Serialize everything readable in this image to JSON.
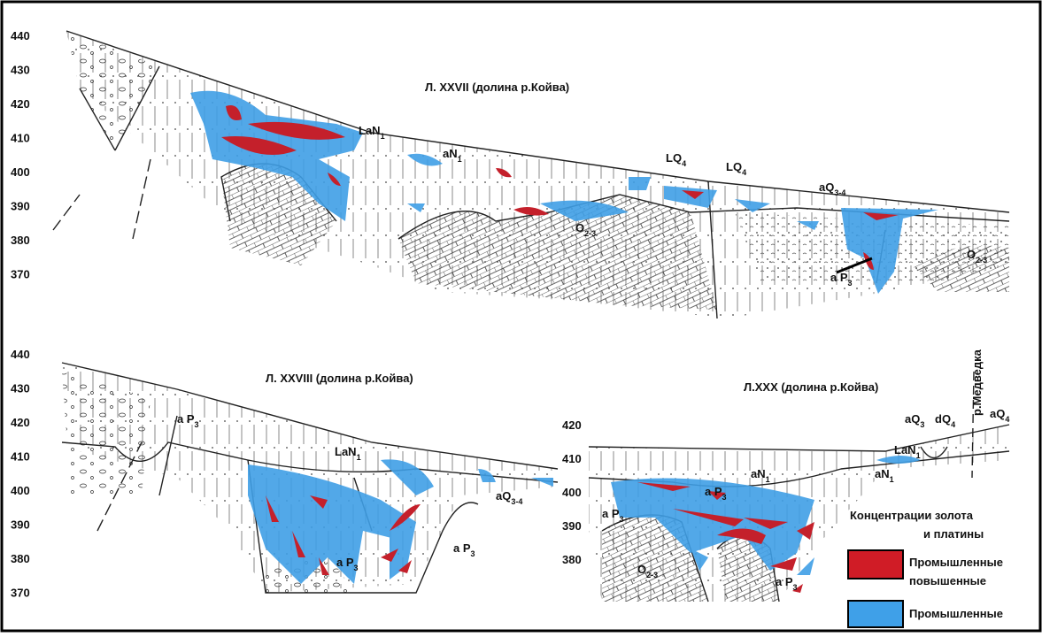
{
  "sections": [
    {
      "title": "Л. XXVII (долина р.Койва)",
      "elevations": [
        440,
        430,
        420,
        410,
        400,
        390,
        380,
        370
      ],
      "labels": [
        {
          "text": "LaN",
          "sub": "1"
        },
        {
          "text": "aN",
          "sub": "1"
        },
        {
          "text": "LQ",
          "sub": "4"
        },
        {
          "text": "LQ",
          "sub": "4"
        },
        {
          "text": "aQ",
          "sub": "3-4"
        },
        {
          "text": "O",
          "sub": "2-3"
        },
        {
          "text": "O",
          "sub": "2-3"
        },
        {
          "text": "a P",
          "sub": "3"
        }
      ]
    },
    {
      "title": "Л. XXVIII  (долина р.Койва)",
      "elevations": [
        440,
        430,
        420,
        410,
        400,
        390,
        380,
        370
      ],
      "labels": [
        {
          "text": "a P",
          "sub": "3"
        },
        {
          "text": "LaN",
          "sub": "1"
        },
        {
          "text": "aQ",
          "sub": "3-4"
        },
        {
          "text": "a P",
          "sub": "3"
        },
        {
          "text": "a P",
          "sub": "3"
        }
      ]
    },
    {
      "title": "Л.XXX  (долина р.Койва)",
      "elevations": [
        420,
        410,
        400,
        390,
        380
      ],
      "labels": [
        {
          "text": "aQ",
          "sub": "3"
        },
        {
          "text": "dQ",
          "sub": "4"
        },
        {
          "text": "aQ",
          "sub": "4"
        },
        {
          "text": "LaN",
          "sub": "1"
        },
        {
          "text": "aN",
          "sub": "1"
        },
        {
          "text": "aN",
          "sub": "1"
        },
        {
          "text": "a P",
          "sub": "3"
        },
        {
          "text": "a P",
          "sub": "3"
        },
        {
          "text": "O",
          "sub": "2-3"
        },
        {
          "text": "a P",
          "sub": "3"
        }
      ],
      "river": "р.Медведка"
    }
  ],
  "legend": {
    "title": [
      "Концентрации золота",
      "и платины"
    ],
    "items": [
      {
        "label": [
          "Промышленные",
          "повышенные"
        ]
      },
      {
        "label": [
          "Промышленные"
        ]
      }
    ]
  }
}
